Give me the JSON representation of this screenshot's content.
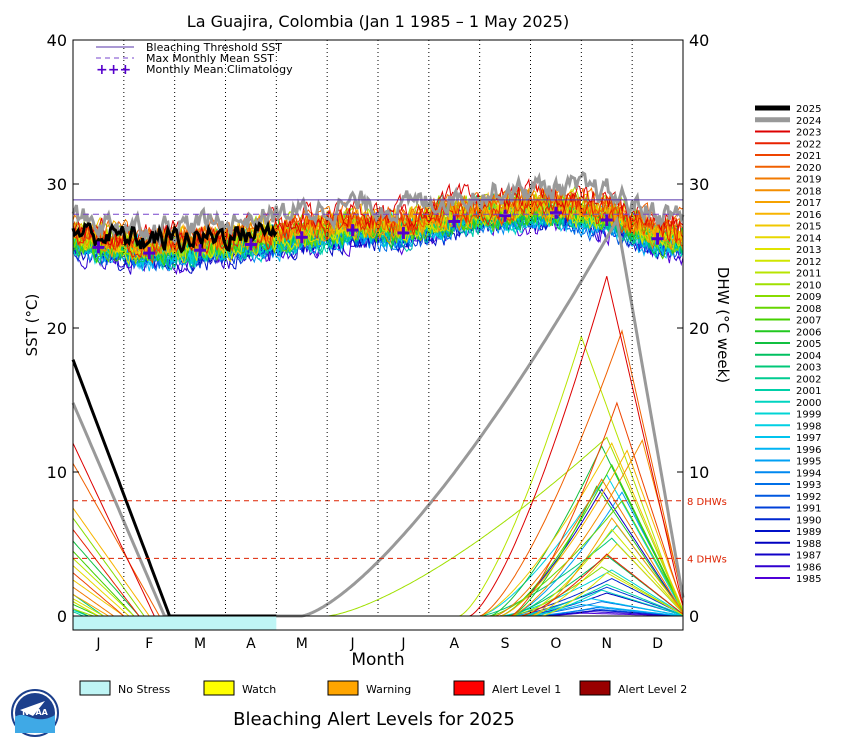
{
  "chart_data": {
    "type": "line",
    "title": "La Guajira, Colombia      (Jan 1 1985 – 1 May 2025)",
    "xlabel": "Month",
    "ylabel_left": "SST (°C)",
    "ylabel_right": "DHW (°C week)",
    "ylim": [
      0,
      40
    ],
    "grid": "dotted vertical month lines",
    "months": [
      "J",
      "F",
      "M",
      "A",
      "M",
      "J",
      "J",
      "A",
      "S",
      "O",
      "N",
      "D"
    ],
    "yticks": [
      0,
      10,
      20,
      30,
      40
    ],
    "thresholds": {
      "bleaching_threshold_sst": 28.9,
      "max_monthly_mean_sst": 27.9,
      "dhw_4": 4,
      "dhw_8": 8,
      "dhw_4_label": "4 DHWs",
      "dhw_8_label": "8 DHWs"
    },
    "top_legend": {
      "threshold": "Bleaching Threshold SST",
      "mmm": "Max Monthly Mean SST",
      "climatology": "Monthly Mean Climatology",
      "climatology_marker": "+++"
    },
    "climatology": {
      "months": [
        0.5,
        1.5,
        2.5,
        3.5,
        4.5,
        5.5,
        6.5,
        7.5,
        8.5,
        9.5,
        10.5,
        11.5
      ],
      "values": [
        25.6,
        25.2,
        25.4,
        25.8,
        26.3,
        26.8,
        26.6,
        27.4,
        27.8,
        28.0,
        27.5,
        26.2
      ]
    },
    "series": [
      {
        "name": "2025",
        "color": "#000000",
        "sst_offset": 0.9,
        "dhw_start": 17.8,
        "dhw_end_month": 1.9,
        "end_month": 4.0,
        "width": 3
      },
      {
        "name": "2024",
        "color": "#999999",
        "sst_offset": 1.8,
        "dhw_start": 14.8,
        "dhw_end_month": 1.8,
        "peak": 27.5,
        "peak_month": 10.7,
        "onset_month": 4.5,
        "width": 3
      },
      {
        "name": "2023",
        "color": "#dd0000",
        "sst_offset": 1.3,
        "dhw_start": 12.0,
        "dhw_end_month": 1.6,
        "peak": 23.6,
        "peak_month": 10.5,
        "onset_month": 7.8
      },
      {
        "name": "2022",
        "color": "#e82200",
        "sst_offset": 0.6,
        "dhw_start": 6.0,
        "dhw_end_month": 1.3,
        "peak": 4.3,
        "peak_month": 10.5,
        "onset_month": 8.8
      },
      {
        "name": "2021",
        "color": "#ee4400",
        "sst_offset": 0.7,
        "dhw_start": 3.0,
        "dhw_end_month": 1.0,
        "peak": 14.8,
        "peak_month": 10.7,
        "onset_month": 8.6
      },
      {
        "name": "2020",
        "color": "#f06000",
        "sst_offset": 1.1,
        "dhw_start": 10.6,
        "dhw_end_month": 1.7,
        "peak": 19.8,
        "peak_month": 10.8,
        "onset_month": 8.0
      },
      {
        "name": "2019",
        "color": "#f27a00",
        "sst_offset": 0.9,
        "dhw_start": 2.0,
        "dhw_end_month": 0.8,
        "peak": 9.5,
        "peak_month": 10.4,
        "onset_month": 8.3
      },
      {
        "name": "2018",
        "color": "#f48e00",
        "sst_offset": 0.4,
        "dhw_start": 0.0,
        "dhw_end_month": 0.0,
        "peak": 12.2,
        "peak_month": 11.2,
        "onset_month": 8.6
      },
      {
        "name": "2017",
        "color": "#f6a200",
        "sst_offset": 0.5,
        "dhw_start": 1.5,
        "dhw_end_month": 0.7,
        "peak": 6.8,
        "peak_month": 10.6,
        "onset_month": 9.0
      },
      {
        "name": "2016",
        "color": "#f8b400",
        "sst_offset": 0.9,
        "dhw_start": 7.5,
        "dhw_end_month": 1.5,
        "peak": 11.5,
        "peak_month": 10.9,
        "onset_month": 8.4
      },
      {
        "name": "2015",
        "color": "#f0c800",
        "sst_offset": 0.8,
        "dhw_start": 2.5,
        "dhw_end_month": 1.0,
        "peak": 12.0,
        "peak_month": 10.6,
        "onset_month": 8.0
      },
      {
        "name": "2014",
        "color": "#e8d800",
        "sst_offset": 0.5,
        "dhw_start": 3.5,
        "dhw_end_month": 1.1,
        "peak": 5.0,
        "peak_month": 10.7,
        "onset_month": 9.0
      },
      {
        "name": "2013",
        "color": "#e0e400",
        "sst_offset": 0.3,
        "dhw_start": 1.0,
        "dhw_end_month": 0.5,
        "peak": 3.0,
        "peak_month": 10.5,
        "onset_month": 9.2
      },
      {
        "name": "2012",
        "color": "#d0e600",
        "sst_offset": 0.4,
        "dhw_start": 1.2,
        "dhw_end_month": 0.6,
        "peak": 6.0,
        "peak_month": 10.6,
        "onset_month": 8.8
      },
      {
        "name": "2011",
        "color": "#b8e400",
        "sst_offset": 0.6,
        "dhw_start": 4.0,
        "dhw_end_month": 1.2,
        "peak": 19.4,
        "peak_month": 10.0,
        "onset_month": 7.6
      },
      {
        "name": "2010",
        "color": "#a0e000",
        "sst_offset": 1.0,
        "dhw_start": 0.5,
        "dhw_end_month": 0.4,
        "peak": 12.4,
        "peak_month": 10.5,
        "onset_month": 5.0
      },
      {
        "name": "2009",
        "color": "#88dc00",
        "sst_offset": 0.2,
        "dhw_start": 6.8,
        "dhw_end_month": 1.4,
        "peak": 3.4,
        "peak_month": 10.4,
        "onset_month": 8.6
      },
      {
        "name": "2008",
        "color": "#66d600",
        "sst_offset": 0.2,
        "dhw_start": 1.0,
        "dhw_end_month": 0.5,
        "peak": 8.0,
        "peak_month": 10.8,
        "onset_month": 8.2
      },
      {
        "name": "2007",
        "color": "#44d000",
        "sst_offset": 0.1,
        "dhw_start": 4.5,
        "dhw_end_month": 1.2,
        "peak": 10.5,
        "peak_month": 10.6,
        "onset_month": 8.4
      },
      {
        "name": "2006",
        "color": "#22c820",
        "sst_offset": 0.2,
        "dhw_start": 0.8,
        "dhw_end_month": 0.5,
        "peak": 9.0,
        "peak_month": 10.3,
        "onset_month": 8.6
      },
      {
        "name": "2005",
        "color": "#11c040",
        "sst_offset": 0.6,
        "dhw_start": 5.2,
        "dhw_end_month": 1.3,
        "peak": 11.8,
        "peak_month": 10.4,
        "onset_month": 8.2
      },
      {
        "name": "2004",
        "color": "#00c060",
        "sst_offset": 0.2,
        "dhw_start": 0.5,
        "dhw_end_month": 0.3,
        "peak": 4.2,
        "peak_month": 10.5,
        "onset_month": 8.5
      },
      {
        "name": "2003",
        "color": "#00c878",
        "sst_offset": 0.1,
        "dhw_start": 1.5,
        "dhw_end_month": 0.6,
        "peak": 5.4,
        "peak_month": 10.6,
        "onset_month": 8.0
      },
      {
        "name": "2002",
        "color": "#00cc90",
        "sst_offset": 0.0,
        "dhw_start": 0.3,
        "dhw_end_month": 0.2,
        "peak": 6.3,
        "peak_month": 10.7,
        "onset_month": 8.6
      },
      {
        "name": "2001",
        "color": "#00d0a8",
        "sst_offset": -0.1,
        "dhw_start": 0.0,
        "dhw_end_month": 0.0,
        "peak": 2.2,
        "peak_month": 10.5,
        "onset_month": 8.8
      },
      {
        "name": "2000",
        "color": "#00d4c0",
        "sst_offset": -0.2,
        "dhw_start": 0.0,
        "dhw_end_month": 0.0,
        "peak": 1.8,
        "peak_month": 10.4,
        "onset_month": 9.0
      },
      {
        "name": "1999",
        "color": "#00d4d4",
        "sst_offset": 0.1,
        "dhw_start": 0.4,
        "dhw_end_month": 0.3,
        "peak": 3.2,
        "peak_month": 10.6,
        "onset_month": 8.4
      },
      {
        "name": "1998",
        "color": "#00d0e4",
        "sst_offset": 0.4,
        "dhw_start": 0.0,
        "dhw_end_month": 0.0,
        "peak": 9.8,
        "peak_month": 10.5,
        "onset_month": 8.0
      },
      {
        "name": "1997",
        "color": "#00c4ee",
        "sst_offset": -0.1,
        "dhw_start": 0.0,
        "dhw_end_month": 0.0,
        "peak": 1.2,
        "peak_month": 10.2,
        "onset_month": 8.6
      },
      {
        "name": "1996",
        "color": "#00b4f4",
        "sst_offset": -0.3,
        "dhw_start": 0.0,
        "dhw_end_month": 0.0,
        "peak": 0.8,
        "peak_month": 10.0,
        "onset_month": 8.8
      },
      {
        "name": "1995",
        "color": "#00a0f4",
        "sst_offset": 0.1,
        "dhw_start": 0.0,
        "dhw_end_month": 0.0,
        "peak": 8.6,
        "peak_month": 10.8,
        "onset_month": 8.6
      },
      {
        "name": "1994",
        "color": "#0088f0",
        "sst_offset": -0.2,
        "dhw_start": 0.0,
        "dhw_end_month": 0.0,
        "peak": 0.6,
        "peak_month": 10.3,
        "onset_month": 9.0
      },
      {
        "name": "1993",
        "color": "#0070e8",
        "sst_offset": -0.3,
        "dhw_start": 0.0,
        "dhw_end_month": 0.0,
        "peak": 1.0,
        "peak_month": 10.4,
        "onset_month": 8.8
      },
      {
        "name": "1992",
        "color": "#0058e0",
        "sst_offset": -0.4,
        "dhw_start": 0.0,
        "dhw_end_month": 0.0,
        "peak": 0.5,
        "peak_month": 10.2,
        "onset_month": 9.0
      },
      {
        "name": "1991",
        "color": "#0040d8",
        "sst_offset": -0.2,
        "dhw_start": 0.0,
        "dhw_end_month": 0.0,
        "peak": 2.0,
        "peak_month": 10.5,
        "onset_month": 8.6
      },
      {
        "name": "1990",
        "color": "#0028d0",
        "sst_offset": -0.1,
        "dhw_start": 0.0,
        "dhw_end_month": 0.0,
        "peak": 2.6,
        "peak_month": 10.6,
        "onset_month": 8.5
      },
      {
        "name": "1989",
        "color": "#0010c8",
        "sst_offset": -0.4,
        "dhw_start": 0.0,
        "dhw_end_month": 0.0,
        "peak": 0.4,
        "peak_month": 10.3,
        "onset_month": 9.0
      },
      {
        "name": "1988",
        "color": "#0000c0",
        "sst_offset": -0.3,
        "dhw_start": 0.0,
        "dhw_end_month": 0.0,
        "peak": 1.6,
        "peak_month": 10.5,
        "onset_month": 8.8
      },
      {
        "name": "1987",
        "color": "#1000c8",
        "sst_offset": 0.0,
        "dhw_start": 0.0,
        "dhw_end_month": 0.0,
        "peak": 8.8,
        "peak_month": 10.4,
        "onset_month": 8.4
      },
      {
        "name": "1986",
        "color": "#3000d0",
        "sst_offset": -0.5,
        "dhw_start": 0.0,
        "dhw_end_month": 0.0,
        "peak": 0.3,
        "peak_month": 10.2,
        "onset_month": 9.0
      },
      {
        "name": "1985",
        "color": "#5000d8",
        "sst_offset": -0.6,
        "dhw_start": 0.0,
        "dhw_end_month": 0.0,
        "peak": 0.2,
        "peak_month": 10.0,
        "onset_month": 9.2
      }
    ]
  },
  "legend_bottom": {
    "items": [
      {
        "label": "No Stress",
        "color": "#bff5f5"
      },
      {
        "label": "Watch",
        "color": "#ffff00"
      },
      {
        "label": "Warning",
        "color": "#ffa500"
      },
      {
        "label": "Alert Level 1",
        "color": "#ff0000"
      },
      {
        "label": "Alert Level 2",
        "color": "#990000"
      }
    ],
    "title": "Bleaching Alert Levels for 2025",
    "status_bar": {
      "level": "No Stress",
      "from_month": 0,
      "to_month": 4.0
    }
  },
  "logo": {
    "text": "NOAA",
    "icon": "noaa-logo-icon"
  }
}
